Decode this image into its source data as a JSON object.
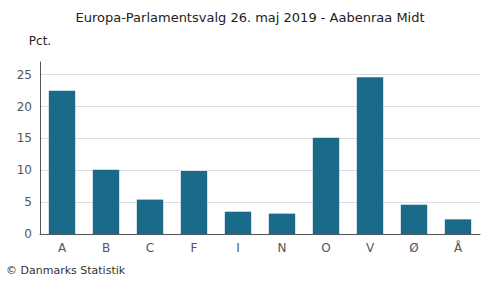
{
  "chart_data": {
    "type": "bar",
    "title": "Europa-Parlamentsvalg 26. maj 2019 - Aabenraa Midt",
    "categories": [
      "A",
      "B",
      "C",
      "F",
      "I",
      "N",
      "O",
      "V",
      "Ø",
      "Å"
    ],
    "values": [
      22.5,
      10.1,
      5.4,
      9.9,
      3.5,
      3.2,
      15.1,
      24.6,
      4.6,
      2.3
    ],
    "color": "#1a6b8a",
    "ylabel": "Pct.",
    "ylim": [
      0,
      27
    ],
    "yticks": [
      0,
      5,
      10,
      15,
      20,
      25
    ],
    "grid": true,
    "annotations": [
      "© Danmarks Statistik"
    ]
  }
}
